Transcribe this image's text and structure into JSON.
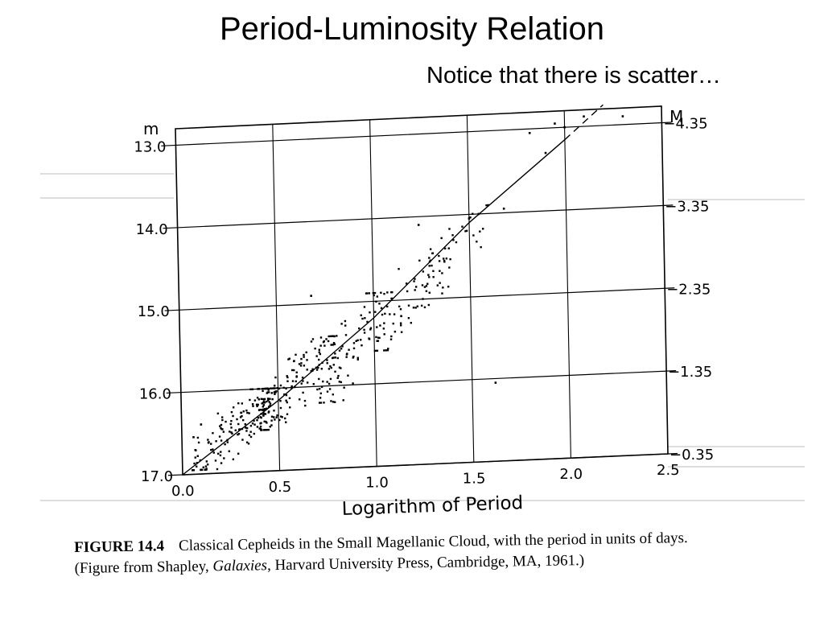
{
  "slide": {
    "title": "Period-Luminosity Relation",
    "subtitle": "Notice that there is scatter…"
  },
  "caption": {
    "figure": "FIGURE 14.4",
    "line1": "Classical Cepheids in the Small Magellanic Cloud, with the period in units of days.",
    "line2_pre": "(Figure from Shapley, ",
    "line2_italic": "Galaxies",
    "line2_post": ", Harvard University Press, Cambridge, MA, 1961.)"
  },
  "chart_data": {
    "type": "scatter",
    "xlabel": "Logarithm of Period",
    "ylabel_left": "m",
    "ylabel_right": "M",
    "xlim": [
      0.0,
      2.5
    ],
    "ylim_left": [
      17.0,
      12.8
    ],
    "x_ticks": [
      "0.0",
      "0.5",
      "1.0",
      "1.5",
      "2.0",
      "2.5"
    ],
    "y_ticks_left": [
      "13.0",
      "14.0",
      "15.0",
      "16.0",
      "17.0"
    ],
    "y_ticks_left_values": [
      13.0,
      14.0,
      15.0,
      16.0,
      17.0
    ],
    "y_ticks_right": [
      "-4.35",
      "-3.35",
      "-2.35",
      "-1.35",
      "-0.35"
    ],
    "y_ticks_right_values": [
      13.0,
      14.0,
      15.0,
      16.0,
      17.0
    ],
    "grid": true,
    "fit_line": {
      "solid": [
        [
          0.0,
          17.0
        ],
        [
          0.5,
          16.15
        ],
        [
          1.0,
          15.2
        ],
        [
          1.5,
          14.1
        ],
        [
          2.0,
          13.15
        ]
      ],
      "dashed": [
        [
          2.0,
          13.15
        ],
        [
          2.1,
          12.95
        ],
        [
          2.2,
          12.75
        ]
      ]
    },
    "cluster_summary": [
      {
        "x_range": [
          0.05,
          0.5
        ],
        "m_range": [
          16.0,
          16.95
        ],
        "n": 160
      },
      {
        "x_range": [
          0.4,
          0.8
        ],
        "m_range": [
          15.4,
          16.5
        ],
        "n": 150
      },
      {
        "x_range": [
          0.7,
          1.1
        ],
        "m_range": [
          14.9,
          16.2
        ],
        "n": 90
      },
      {
        "x_range": [
          1.0,
          1.4
        ],
        "m_range": [
          14.4,
          15.6
        ],
        "n": 60
      },
      {
        "x_range": [
          1.2,
          1.6
        ],
        "m_range": [
          13.9,
          15.1
        ],
        "n": 35
      }
    ],
    "sparse_points": [
      [
        0.1,
        16.4
      ],
      [
        0.06,
        16.55
      ],
      [
        0.68,
        14.9
      ],
      [
        1.24,
        14.1
      ],
      [
        1.5,
        14.05
      ],
      [
        1.6,
        13.9
      ],
      [
        1.55,
        14.0
      ],
      [
        1.68,
        13.95
      ],
      [
        1.62,
        16.05
      ],
      [
        1.82,
        13.05
      ],
      [
        1.9,
        13.3
      ],
      [
        1.95,
        12.95
      ],
      [
        2.0,
        13.0
      ],
      [
        2.1,
        12.88
      ],
      [
        2.3,
        12.9
      ]
    ]
  }
}
